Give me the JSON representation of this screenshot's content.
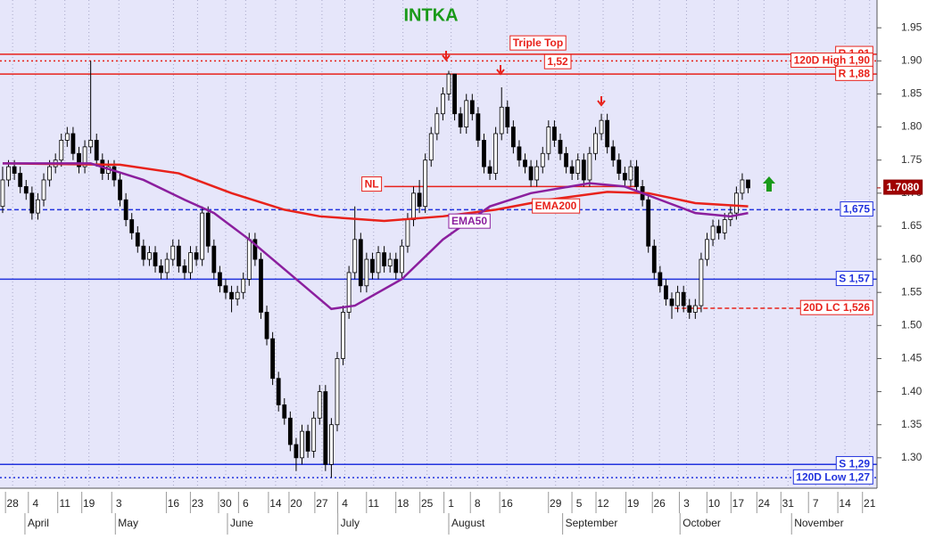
{
  "chart_data": {
    "type": "candlestick",
    "title": "INTKA",
    "ohlc": [
      [
        1.68,
        1.74,
        1.67,
        1.72
      ],
      [
        1.72,
        1.75,
        1.71,
        1.74
      ],
      [
        1.74,
        1.75,
        1.72,
        1.73
      ],
      [
        1.73,
        1.74,
        1.7,
        1.71
      ],
      [
        1.71,
        1.72,
        1.69,
        1.7
      ],
      [
        1.7,
        1.71,
        1.66,
        1.67
      ],
      [
        1.67,
        1.7,
        1.66,
        1.69
      ],
      [
        1.69,
        1.73,
        1.68,
        1.72
      ],
      [
        1.72,
        1.75,
        1.71,
        1.74
      ],
      [
        1.74,
        1.76,
        1.73,
        1.75
      ],
      [
        1.75,
        1.79,
        1.74,
        1.78
      ],
      [
        1.78,
        1.8,
        1.77,
        1.79
      ],
      [
        1.79,
        1.8,
        1.75,
        1.76
      ],
      [
        1.76,
        1.77,
        1.73,
        1.74
      ],
      [
        1.74,
        1.78,
        1.73,
        1.77
      ],
      [
        1.77,
        1.9,
        1.76,
        1.78
      ],
      [
        1.78,
        1.79,
        1.74,
        1.75
      ],
      [
        1.75,
        1.76,
        1.72,
        1.73
      ],
      [
        1.73,
        1.75,
        1.72,
        1.74
      ],
      [
        1.74,
        1.75,
        1.71,
        1.72
      ],
      [
        1.72,
        1.73,
        1.68,
        1.69
      ],
      [
        1.69,
        1.7,
        1.65,
        1.66
      ],
      [
        1.66,
        1.67,
        1.63,
        1.64
      ],
      [
        1.64,
        1.65,
        1.61,
        1.62
      ],
      [
        1.62,
        1.63,
        1.59,
        1.6
      ],
      [
        1.6,
        1.62,
        1.59,
        1.61
      ],
      [
        1.61,
        1.62,
        1.58,
        1.59
      ],
      [
        1.59,
        1.6,
        1.57,
        1.58
      ],
      [
        1.58,
        1.61,
        1.57,
        1.6
      ],
      [
        1.6,
        1.63,
        1.59,
        1.62
      ],
      [
        1.62,
        1.63,
        1.58,
        1.59
      ],
      [
        1.59,
        1.6,
        1.57,
        1.58
      ],
      [
        1.58,
        1.62,
        1.57,
        1.61
      ],
      [
        1.61,
        1.62,
        1.59,
        1.6
      ],
      [
        1.6,
        1.68,
        1.59,
        1.67
      ],
      [
        1.67,
        1.68,
        1.61,
        1.62
      ],
      [
        1.62,
        1.63,
        1.57,
        1.58
      ],
      [
        1.58,
        1.59,
        1.55,
        1.56
      ],
      [
        1.56,
        1.57,
        1.54,
        1.55
      ],
      [
        1.55,
        1.56,
        1.52,
        1.54
      ],
      [
        1.54,
        1.56,
        1.53,
        1.55
      ],
      [
        1.55,
        1.58,
        1.54,
        1.57
      ],
      [
        1.57,
        1.64,
        1.56,
        1.63
      ],
      [
        1.63,
        1.64,
        1.59,
        1.6
      ],
      [
        1.6,
        1.61,
        1.51,
        1.52
      ],
      [
        1.52,
        1.53,
        1.47,
        1.48
      ],
      [
        1.48,
        1.49,
        1.41,
        1.42
      ],
      [
        1.42,
        1.43,
        1.37,
        1.38
      ],
      [
        1.38,
        1.39,
        1.35,
        1.36
      ],
      [
        1.36,
        1.37,
        1.31,
        1.32
      ],
      [
        1.32,
        1.33,
        1.28,
        1.3
      ],
      [
        1.3,
        1.35,
        1.29,
        1.34
      ],
      [
        1.34,
        1.35,
        1.3,
        1.31
      ],
      [
        1.31,
        1.37,
        1.3,
        1.36
      ],
      [
        1.36,
        1.41,
        1.35,
        1.4
      ],
      [
        1.4,
        1.41,
        1.28,
        1.29
      ],
      [
        1.29,
        1.36,
        1.27,
        1.35
      ],
      [
        1.35,
        1.46,
        1.34,
        1.45
      ],
      [
        1.45,
        1.53,
        1.44,
        1.52
      ],
      [
        1.52,
        1.59,
        1.51,
        1.58
      ],
      [
        1.58,
        1.68,
        1.57,
        1.63
      ],
      [
        1.63,
        1.64,
        1.55,
        1.56
      ],
      [
        1.56,
        1.61,
        1.55,
        1.6
      ],
      [
        1.6,
        1.61,
        1.57,
        1.58
      ],
      [
        1.58,
        1.62,
        1.57,
        1.61
      ],
      [
        1.61,
        1.62,
        1.58,
        1.59
      ],
      [
        1.59,
        1.61,
        1.58,
        1.6
      ],
      [
        1.6,
        1.61,
        1.57,
        1.58
      ],
      [
        1.58,
        1.63,
        1.57,
        1.62
      ],
      [
        1.62,
        1.67,
        1.61,
        1.66
      ],
      [
        1.66,
        1.71,
        1.65,
        1.7
      ],
      [
        1.7,
        1.72,
        1.67,
        1.68
      ],
      [
        1.68,
        1.76,
        1.67,
        1.75
      ],
      [
        1.75,
        1.8,
        1.74,
        1.79
      ],
      [
        1.79,
        1.83,
        1.78,
        1.82
      ],
      [
        1.82,
        1.86,
        1.81,
        1.85
      ],
      [
        1.85,
        1.885,
        1.84,
        1.88
      ],
      [
        1.88,
        1.88,
        1.81,
        1.82
      ],
      [
        1.82,
        1.83,
        1.79,
        1.8
      ],
      [
        1.8,
        1.85,
        1.79,
        1.84
      ],
      [
        1.84,
        1.85,
        1.81,
        1.82
      ],
      [
        1.82,
        1.83,
        1.77,
        1.78
      ],
      [
        1.78,
        1.79,
        1.73,
        1.74
      ],
      [
        1.74,
        1.75,
        1.72,
        1.73
      ],
      [
        1.73,
        1.8,
        1.72,
        1.79
      ],
      [
        1.79,
        1.86,
        1.78,
        1.83
      ],
      [
        1.83,
        1.84,
        1.79,
        1.8
      ],
      [
        1.8,
        1.81,
        1.76,
        1.77
      ],
      [
        1.77,
        1.78,
        1.74,
        1.75
      ],
      [
        1.75,
        1.76,
        1.73,
        1.74
      ],
      [
        1.74,
        1.75,
        1.71,
        1.72
      ],
      [
        1.72,
        1.75,
        1.71,
        1.74
      ],
      [
        1.74,
        1.77,
        1.73,
        1.76
      ],
      [
        1.76,
        1.81,
        1.75,
        1.8
      ],
      [
        1.8,
        1.81,
        1.77,
        1.78
      ],
      [
        1.78,
        1.79,
        1.75,
        1.76
      ],
      [
        1.76,
        1.77,
        1.73,
        1.74
      ],
      [
        1.74,
        1.75,
        1.72,
        1.73
      ],
      [
        1.73,
        1.76,
        1.72,
        1.75
      ],
      [
        1.75,
        1.76,
        1.71,
        1.72
      ],
      [
        1.72,
        1.77,
        1.71,
        1.76
      ],
      [
        1.76,
        1.8,
        1.75,
        1.79
      ],
      [
        1.79,
        1.82,
        1.78,
        1.81
      ],
      [
        1.81,
        1.82,
        1.76,
        1.77
      ],
      [
        1.77,
        1.78,
        1.74,
        1.75
      ],
      [
        1.75,
        1.76,
        1.72,
        1.73
      ],
      [
        1.73,
        1.74,
        1.71,
        1.72
      ],
      [
        1.72,
        1.75,
        1.71,
        1.74
      ],
      [
        1.74,
        1.75,
        1.7,
        1.71
      ],
      [
        1.71,
        1.72,
        1.68,
        1.69
      ],
      [
        1.69,
        1.7,
        1.61,
        1.62
      ],
      [
        1.62,
        1.63,
        1.57,
        1.58
      ],
      [
        1.58,
        1.59,
        1.55,
        1.56
      ],
      [
        1.56,
        1.57,
        1.53,
        1.54
      ],
      [
        1.54,
        1.55,
        1.51,
        1.53
      ],
      [
        1.53,
        1.56,
        1.52,
        1.55
      ],
      [
        1.55,
        1.56,
        1.52,
        1.53
      ],
      [
        1.53,
        1.54,
        1.51,
        1.52
      ],
      [
        1.52,
        1.54,
        1.51,
        1.53
      ],
      [
        1.53,
        1.61,
        1.52,
        1.6
      ],
      [
        1.6,
        1.64,
        1.59,
        1.63
      ],
      [
        1.63,
        1.66,
        1.62,
        1.65
      ],
      [
        1.65,
        1.66,
        1.63,
        1.64
      ],
      [
        1.64,
        1.67,
        1.63,
        1.66
      ],
      [
        1.66,
        1.68,
        1.65,
        1.67
      ],
      [
        1.67,
        1.71,
        1.66,
        1.7
      ],
      [
        1.7,
        1.73,
        1.69,
        1.72
      ],
      [
        1.72,
        1.72,
        1.7,
        1.708
      ]
    ],
    "moving_averages": [
      {
        "name": "EMA200",
        "color": "#e8221b",
        "x": [
          0,
          20,
          30,
          39,
          48,
          54,
          65,
          75,
          84,
          93,
          103,
          110,
          118,
          127
        ],
        "values": [
          1.745,
          1.743,
          1.73,
          1.7,
          1.675,
          1.665,
          1.658,
          1.665,
          1.675,
          1.69,
          1.702,
          1.7,
          1.685,
          1.68
        ]
      },
      {
        "name": "EMA50",
        "color": "#8b1f9e",
        "x": [
          0,
          15,
          24,
          31,
          36,
          42,
          50,
          56,
          60,
          68,
          75,
          83,
          90,
          100,
          106,
          112,
          118,
          124,
          127
        ],
        "values": [
          1.745,
          1.745,
          1.72,
          1.69,
          1.67,
          1.63,
          1.57,
          1.525,
          1.53,
          1.57,
          1.63,
          1.68,
          1.7,
          1.715,
          1.71,
          1.69,
          1.67,
          1.665,
          1.67
        ]
      }
    ],
    "levels": [
      {
        "label": "R 1,91",
        "value": 1.91,
        "color": "#e8221b",
        "style": "solid"
      },
      {
        "label": "120D High 1,90",
        "value": 1.9,
        "color": "#e8221b",
        "style": "dotted"
      },
      {
        "label": "R 1,88",
        "value": 1.88,
        "color": "#e8221b",
        "style": "solid"
      },
      {
        "label": "NL",
        "value": 1.71,
        "color": "#e8221b",
        "style": "solid",
        "x_range": [
          65,
          108
        ]
      },
      {
        "label": "1,675",
        "value": 1.675,
        "color": "#2233dd",
        "style": "dashed"
      },
      {
        "label": "S 1,57",
        "value": 1.57,
        "color": "#2233dd",
        "style": "solid"
      },
      {
        "label": "20D LC 1,526",
        "value": 1.526,
        "color": "#e8221b",
        "style": "dashed",
        "x_range": [
          114.5,
          148.5
        ]
      },
      {
        "label": "S 1,29",
        "value": 1.29,
        "color": "#2233dd",
        "style": "solid"
      },
      {
        "label": "120D Low 1,27",
        "value": 1.27,
        "color": "#2233dd",
        "style": "dotted"
      }
    ],
    "annotations": [
      "Triple Top",
      "1,52"
    ],
    "last_price": {
      "value": 1.708,
      "label": "1.7080"
    },
    "xlim": [
      -0.45,
      148.5
    ],
    "xticks": [
      {
        "value": 1.7,
        "label": "28"
      },
      {
        "value": 5.6,
        "label": "4"
      },
      {
        "value": 10.6,
        "label": "11"
      },
      {
        "value": 14.7,
        "label": "19"
      },
      {
        "value": 19.8,
        "label": "3"
      },
      {
        "value": 29.1,
        "label": "16"
      },
      {
        "value": 33.2,
        "label": "23"
      },
      {
        "value": 38,
        "label": "30"
      },
      {
        "value": 41.4,
        "label": "6"
      },
      {
        "value": 46.5,
        "label": "14"
      },
      {
        "value": 50,
        "label": "20"
      },
      {
        "value": 54.4,
        "label": "27"
      },
      {
        "value": 58.3,
        "label": "4"
      },
      {
        "value": 63.2,
        "label": "11"
      },
      {
        "value": 68.2,
        "label": "18"
      },
      {
        "value": 72.3,
        "label": "25"
      },
      {
        "value": 76.4,
        "label": "1"
      },
      {
        "value": 80.9,
        "label": "8"
      },
      {
        "value": 85.9,
        "label": "16"
      },
      {
        "value": 94.2,
        "label": "29"
      },
      {
        "value": 98.2,
        "label": "5"
      },
      {
        "value": 102.3,
        "label": "12"
      },
      {
        "value": 107.4,
        "label": "19"
      },
      {
        "value": 111.9,
        "label": "26"
      },
      {
        "value": 116.5,
        "label": "3"
      },
      {
        "value": 121.2,
        "label": "10"
      },
      {
        "value": 125.3,
        "label": "17"
      },
      {
        "value": 129.7,
        "label": "24"
      },
      {
        "value": 133.8,
        "label": "31"
      },
      {
        "value": 138.5,
        "label": "7"
      },
      {
        "value": 143.5,
        "label": "14"
      },
      {
        "value": 147.7,
        "label": "21"
      }
    ],
    "months": [
      {
        "value": 3.8,
        "label": "April"
      },
      {
        "value": 19.2,
        "label": "May"
      },
      {
        "value": 38.3,
        "label": "June"
      },
      {
        "value": 57.1,
        "label": "July"
      },
      {
        "value": 76,
        "label": "August"
      },
      {
        "value": 95.4,
        "label": "September"
      },
      {
        "value": 115.4,
        "label": "October"
      },
      {
        "value": 134.4,
        "label": "November"
      }
    ],
    "ylim": [
      1.254,
      1.992
    ],
    "yticks": [
      {
        "value": 1.3,
        "label": "1.30"
      },
      1.35,
      {
        "value": 1.4,
        "label": "1.40"
      },
      1.45,
      {
        "value": 1.5,
        "label": "1.50"
      },
      1.55,
      {
        "value": 1.6,
        "label": "1.60"
      },
      1.65,
      {
        "value": 1.7,
        "label": "1.70"
      },
      1.75,
      {
        "value": 1.8,
        "label": "1.80"
      },
      1.85,
      {
        "value": 1.9,
        "label": "1.90"
      },
      1.95
    ],
    "grid": true
  }
}
